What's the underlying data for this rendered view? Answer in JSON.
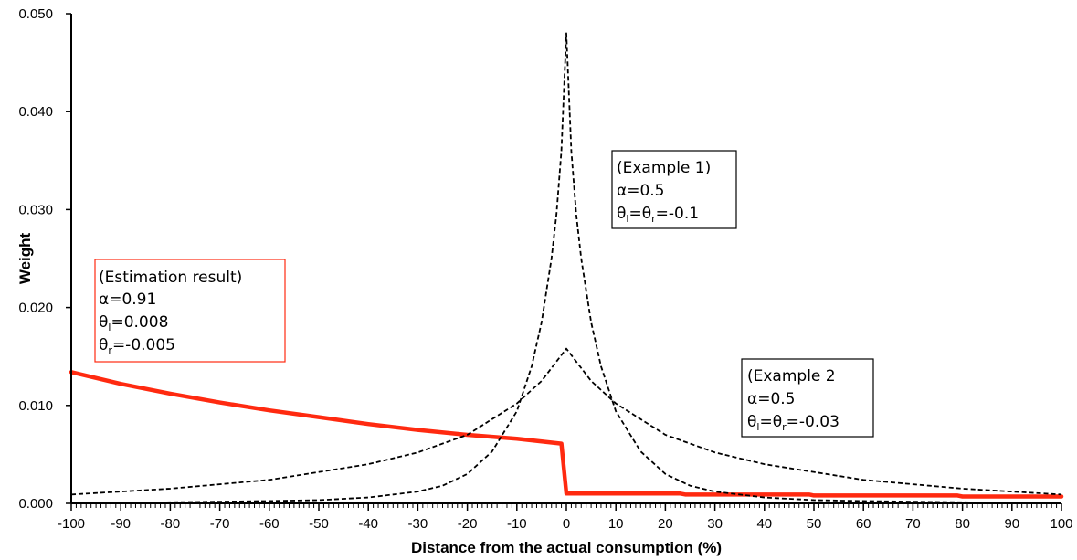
{
  "chart_data": {
    "type": "line",
    "xlabel": "Distance from the actual consumption (%)",
    "ylabel": "Weight",
    "xlim": [
      -100,
      100
    ],
    "ylim": [
      0,
      0.05
    ],
    "x_ticks": [
      "-100",
      "-90",
      "-80",
      "-70",
      "-60",
      "-50",
      "-40",
      "-30",
      "-20",
      "-10",
      "0",
      "10",
      "20",
      "30",
      "40",
      "50",
      "60",
      "70",
      "80",
      "90",
      "100"
    ],
    "y_ticks": [
      "0.000",
      "0.010",
      "0.020",
      "0.030",
      "0.040",
      "0.050"
    ],
    "grid": false,
    "legend": "none",
    "series": [
      {
        "style": "solid",
        "color": "#ff2a10",
        "points": [
          [
            -100,
            0.0134
          ],
          [
            -90,
            0.0122
          ],
          [
            -80,
            0.0112
          ],
          [
            -70,
            0.0103
          ],
          [
            -60,
            0.0095
          ],
          [
            -50,
            0.0088
          ],
          [
            -40,
            0.0081
          ],
          [
            -30,
            0.0075
          ],
          [
            -20,
            0.007
          ],
          [
            -10,
            0.0066
          ],
          [
            -1,
            0.0061
          ],
          [
            0,
            0.001
          ],
          [
            10,
            0.001
          ],
          [
            23,
            0.001
          ],
          [
            24,
            0.0009
          ],
          [
            49,
            0.0009
          ],
          [
            50,
            0.0008
          ],
          [
            79,
            0.0008
          ],
          [
            80,
            0.0007
          ],
          [
            100,
            0.0007
          ]
        ]
      },
      {
        "style": "dashed",
        "color": "#000000",
        "points": [
          [
            -100,
            7e-05
          ],
          [
            -80,
            0.00011
          ],
          [
            -60,
            0.00024
          ],
          [
            -50,
            0.00033
          ],
          [
            -40,
            0.0006
          ],
          [
            -30,
            0.0012
          ],
          [
            -25,
            0.0018
          ],
          [
            -20,
            0.003
          ],
          [
            -15,
            0.0053
          ],
          [
            -10,
            0.0094
          ],
          [
            -7,
            0.014
          ],
          [
            -5,
            0.0185
          ],
          [
            -3,
            0.025
          ],
          [
            -2,
            0.0295
          ],
          [
            -1,
            0.036
          ],
          [
            0,
            0.048
          ],
          [
            1,
            0.036
          ],
          [
            2,
            0.0295
          ],
          [
            3,
            0.025
          ],
          [
            5,
            0.0185
          ],
          [
            7,
            0.014
          ],
          [
            10,
            0.0094
          ],
          [
            15,
            0.0053
          ],
          [
            20,
            0.003
          ],
          [
            25,
            0.0018
          ],
          [
            30,
            0.0012
          ],
          [
            40,
            0.0006
          ],
          [
            50,
            0.00033
          ],
          [
            60,
            0.00024
          ],
          [
            80,
            0.00011
          ],
          [
            100,
            7e-05
          ]
        ]
      },
      {
        "style": "dashed",
        "color": "#000000",
        "points": [
          [
            -100,
            0.0009
          ],
          [
            -80,
            0.0015
          ],
          [
            -60,
            0.0024
          ],
          [
            -40,
            0.004
          ],
          [
            -30,
            0.0052
          ],
          [
            -20,
            0.007
          ],
          [
            -10,
            0.0102
          ],
          [
            -5,
            0.0125
          ],
          [
            0,
            0.0158
          ],
          [
            5,
            0.0125
          ],
          [
            10,
            0.0102
          ],
          [
            20,
            0.007
          ],
          [
            30,
            0.0052
          ],
          [
            40,
            0.004
          ],
          [
            60,
            0.0024
          ],
          [
            80,
            0.0015
          ],
          [
            100,
            0.0009
          ]
        ]
      }
    ],
    "annotations": [
      {
        "id": "estimation",
        "border": "#ff2a10",
        "line1": "(Estimation result)",
        "alpha": "α=0.91",
        "tl_sym": "θ",
        "tl_sub": "l",
        "tl_val": "=0.008",
        "tr_sym": "θ",
        "tr_sub": "r",
        "tr_val": "=-0.005"
      },
      {
        "id": "example1",
        "border": "#000000",
        "line1": "(Example 1)",
        "alpha": "α=0.5",
        "t_sym1": "θ",
        "t_sub1": "l",
        "t_eq": "=θ",
        "t_sub2": "r",
        "t_val": "=-0.1"
      },
      {
        "id": "example2",
        "border": "#000000",
        "line1": "(Example 2",
        "alpha": "α=0.5",
        "t_sym1": "θ",
        "t_sub1": "l",
        "t_eq": "=θ",
        "t_sub2": "r",
        "t_val": "=-0.03"
      }
    ]
  }
}
